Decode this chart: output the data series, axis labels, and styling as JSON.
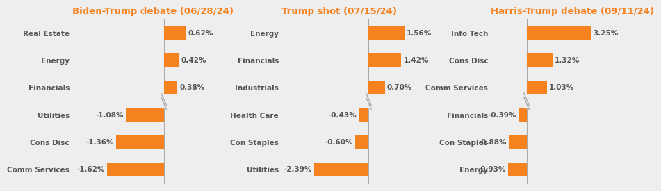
{
  "charts": [
    {
      "title": "Biden-Trump debate (06/28/24)",
      "categories": [
        "Real Estate",
        "Energy",
        "Financials",
        "Utilities",
        "Cons Disc",
        "Comm Services"
      ],
      "values": [
        0.62,
        0.42,
        0.38,
        -1.08,
        -1.36,
        -1.62
      ],
      "labels": [
        "0.62%",
        "0.42%",
        "0.38%",
        "-1.08%",
        "-1.36%",
        "-1.62%"
      ],
      "xlim_left": -2.6,
      "xlim_right": 1.5
    },
    {
      "title": "Trump shot (07/15/24)",
      "categories": [
        "Energy",
        "Financials",
        "Industrials",
        "Health Care",
        "Con Staples",
        "Utilities"
      ],
      "values": [
        1.56,
        1.42,
        0.7,
        -0.43,
        -0.6,
        -2.39
      ],
      "labels": [
        "1.56%",
        "1.42%",
        "0.70%",
        "-0.43%",
        "-0.60%",
        "-2.39%"
      ],
      "xlim_left": -3.8,
      "xlim_right": 2.5
    },
    {
      "title": "Harris-Trump debate (09/11/24)",
      "categories": [
        "Info Tech",
        "Cons Disc",
        "Comm Services",
        "Financials",
        "Con Staples",
        "Energy"
      ],
      "values": [
        3.25,
        1.32,
        1.03,
        -0.39,
        -0.88,
        -0.93
      ],
      "labels": [
        "3.25%",
        "1.32%",
        "1.03%",
        "-0.39%",
        "-0.88%",
        "-0.93%"
      ],
      "xlim_left": -1.8,
      "xlim_right": 5.5
    }
  ],
  "bar_color": "#F5821E",
  "title_color": "#F5821E",
  "label_color": "#555555",
  "category_color": "#555555",
  "background_color": "#eeeeee",
  "zero_line_color": "#aaaaaa",
  "break_color": "#aaaaaa",
  "title_fontsize": 9.5,
  "label_fontsize": 7.5,
  "category_fontsize": 7.5,
  "bar_height": 0.5
}
